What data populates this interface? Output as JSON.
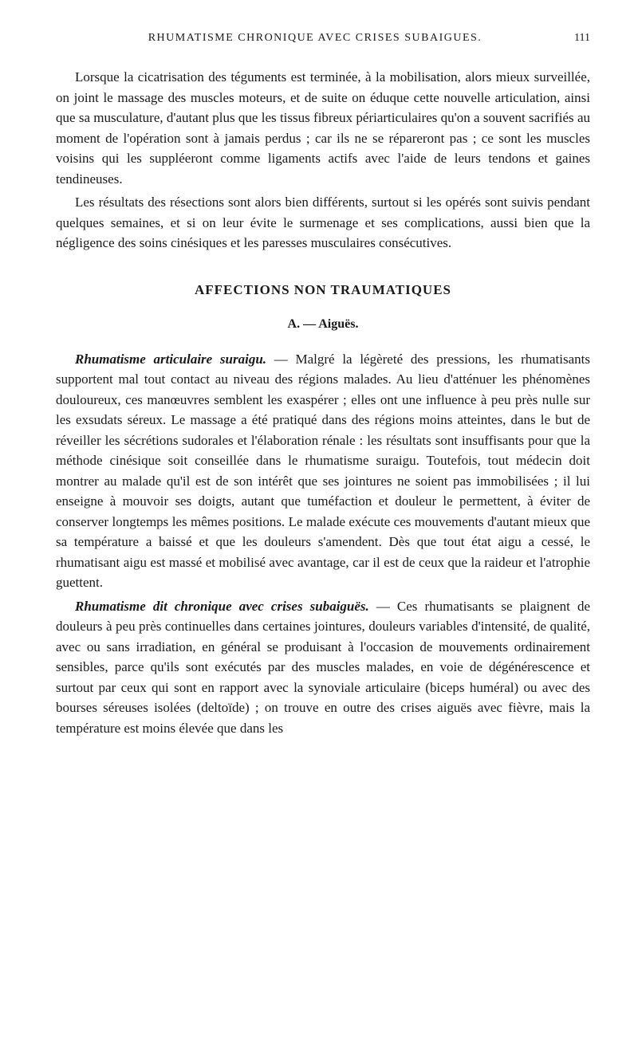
{
  "header": {
    "title": "RHUMATISME CHRONIQUE AVEC CRISES SUBAIGUES.",
    "page_number": "111"
  },
  "paragraphs": {
    "p1": "Lorsque la cicatrisation des téguments est terminée, à la mobilisation, alors mieux surveillée, on joint le massage des muscles moteurs, et de suite on éduque cette nouvelle articulation, ainsi que sa musculature, d'autant plus que les tissus fibreux périarticulaires qu'on a souvent sacrifiés au moment de l'opération sont à jamais perdus ; car ils ne se répareront pas ; ce sont les muscles voisins qui les suppléeront comme ligaments actifs avec l'aide de leurs tendons et gaines tendineuses.",
    "p2": "Les résultats des résections sont alors bien différents, surtout si les opérés sont suivis pendant quelques semaines, et si on leur évite le surmenage et ses complications, aussi bien que la négligence des soins cinésiques et les paresses musculaires consécutives.",
    "p3_lead": "Rhumatisme articulaire suraigu.",
    "p3_body": " — Malgré la légèreté des pressions, les rhumatisants supportent mal tout contact au niveau des régions malades. Au lieu d'atténuer les phénomènes douloureux, ces manœuvres semblent les exaspérer ; elles ont une influence à peu près nulle sur les exsudats séreux. Le massage a été pratiqué dans des régions moins atteintes, dans le but de réveiller les sécrétions sudorales et l'élaboration rénale : les résultats sont insuffisants pour que la méthode cinésique soit conseillée dans le rhumatisme suraigu. Toutefois, tout médecin doit montrer au malade qu'il est de son intérêt que ses jointures ne soient pas immobilisées ; il lui enseigne à mouvoir ses doigts, autant que tuméfaction et douleur le permettent, à éviter de conserver longtemps les mêmes positions. Le malade exécute ces mouvements d'autant mieux que sa température a baissé et que les douleurs s'amendent. Dès que tout état aigu a cessé, le rhumatisant aigu est massé et mobilisé avec avantage, car il est de ceux que la raideur et l'atrophie guettent.",
    "p4_lead": "Rhumatisme dit chronique avec crises subaiguës.",
    "p4_body": " — Ces rhumatisants se plaignent de douleurs à peu près continuelles dans certaines jointures, douleurs variables d'intensité, de qualité, avec ou sans irradiation, en général se produisant à l'occasion de mouvements ordinairement sensibles, parce qu'ils sont exécutés par des muscles malades, en voie de dégénérescence et surtout par ceux qui sont en rapport avec la synoviale articulaire (biceps huméral) ou avec des bourses séreuses isolées (deltoïde) ; on trouve en outre des crises aiguës avec fièvre, mais la température est moins élevée que dans les"
  },
  "sections": {
    "main_title": "AFFECTIONS NON TRAUMATIQUES",
    "sub_title": "A. — Aiguës."
  }
}
